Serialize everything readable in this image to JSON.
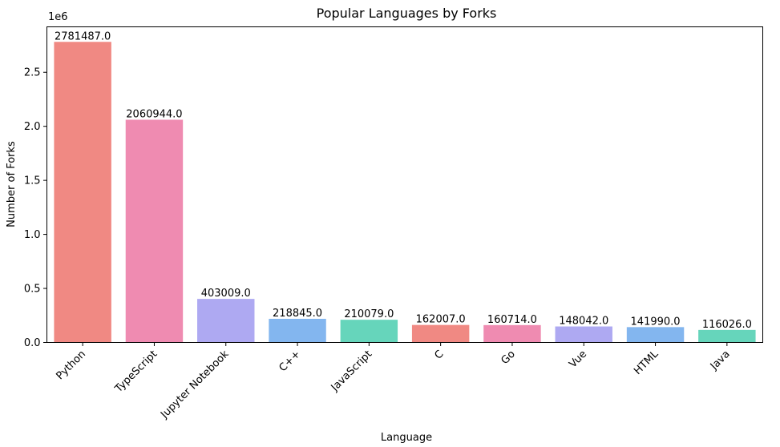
{
  "chart_data": {
    "type": "bar",
    "title": "Popular Languages by Forks",
    "xlabel": "Language",
    "ylabel": "Number of Forks",
    "y_scale_label": "1e6",
    "categories": [
      "Python",
      "TypeScript",
      "Jupyter Notebook",
      "C++",
      "JavaScript",
      "C",
      "Go",
      "Vue",
      "HTML",
      "Java"
    ],
    "values": [
      2781487.0,
      2060944.0,
      403009.0,
      218845.0,
      210079.0,
      162007.0,
      160714.0,
      148042.0,
      141990.0,
      116026.0
    ],
    "value_labels": [
      "2781487.0",
      "2060944.0",
      "403009.0",
      "218845.0",
      "210079.0",
      "162007.0",
      "160714.0",
      "148042.0",
      "141990.0",
      "116026.0"
    ],
    "bar_colors": [
      "#f08983",
      "#ef8bb1",
      "#aea9f2",
      "#83b6ef",
      "#66d5bb",
      "#f08983",
      "#ef8bb1",
      "#aea9f2",
      "#83b6ef",
      "#66d5bb"
    ],
    "ylim": [
      0,
      2920561
    ],
    "yticks": [
      0,
      500000,
      1000000,
      1500000,
      2000000,
      2500000
    ],
    "ytick_labels": [
      "0.0",
      "0.5",
      "1.0",
      "1.5",
      "2.0",
      "2.5"
    ],
    "x_tick_rotation_deg": 45,
    "grid": false,
    "legend": "none"
  }
}
